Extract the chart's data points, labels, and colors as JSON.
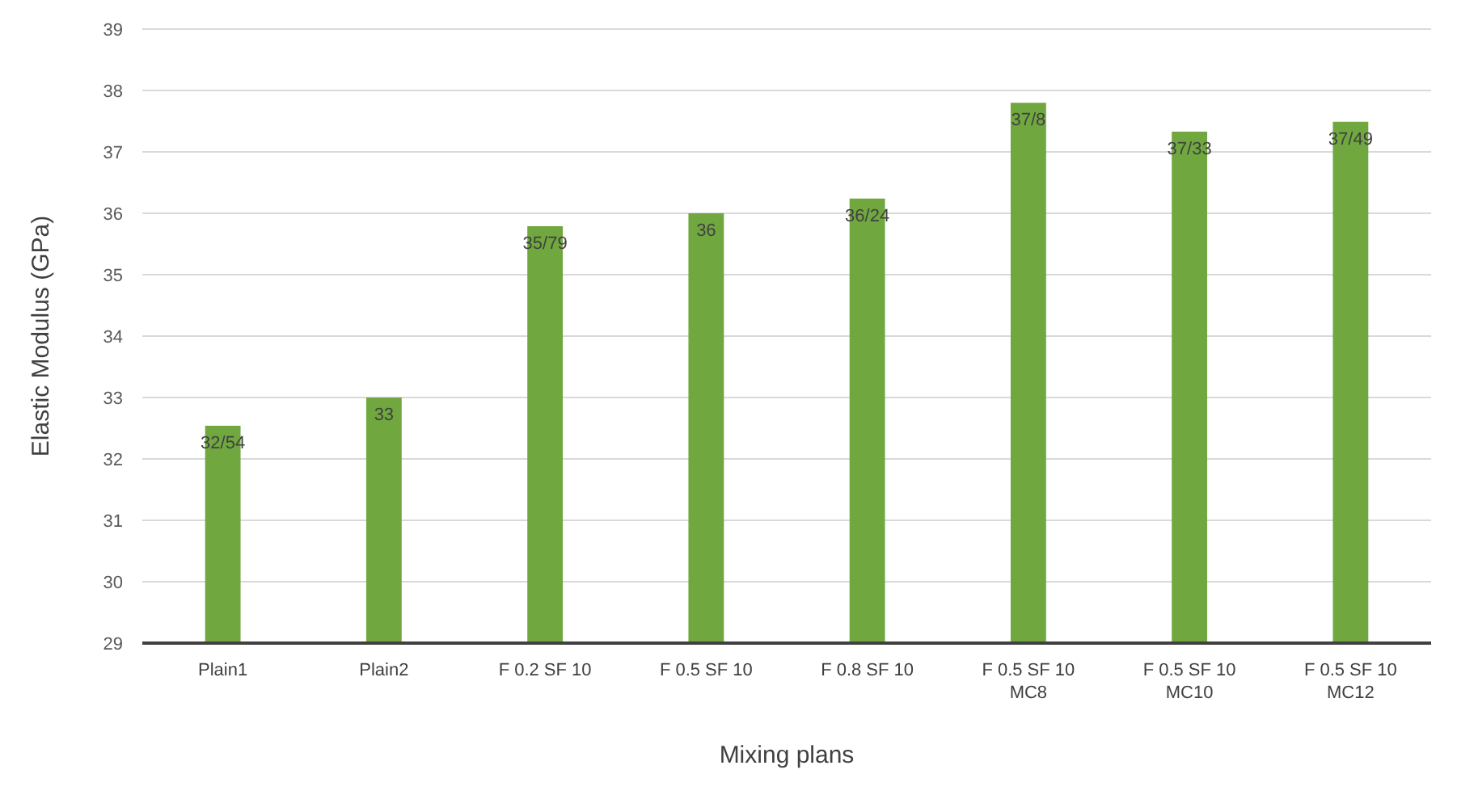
{
  "chart_data": {
    "type": "bar",
    "xlabel": "Mixing plans",
    "ylabel": "Elastic Modulus (GPa)",
    "categories": [
      "Plain1",
      "Plain2",
      "F 0.2 SF 10",
      "F 0.5 SF 10",
      "F 0.8 SF 10",
      "F 0.5 SF 10\nMC8",
      "F 0.5 SF 10\nMC10",
      "F 0.5 SF 10\nMC12"
    ],
    "values": [
      32.54,
      33,
      35.79,
      36,
      36.24,
      37.8,
      37.33,
      37.49
    ],
    "value_labels": [
      "32/54",
      "33",
      "35/79",
      "36",
      "36/24",
      "37/8",
      "37/33",
      "37/49"
    ],
    "color": "#70a83f",
    "ylim": [
      29,
      39
    ],
    "yticks": [
      29,
      30,
      31,
      32,
      33,
      34,
      35,
      36,
      37,
      38,
      39
    ],
    "grid": "y"
  }
}
